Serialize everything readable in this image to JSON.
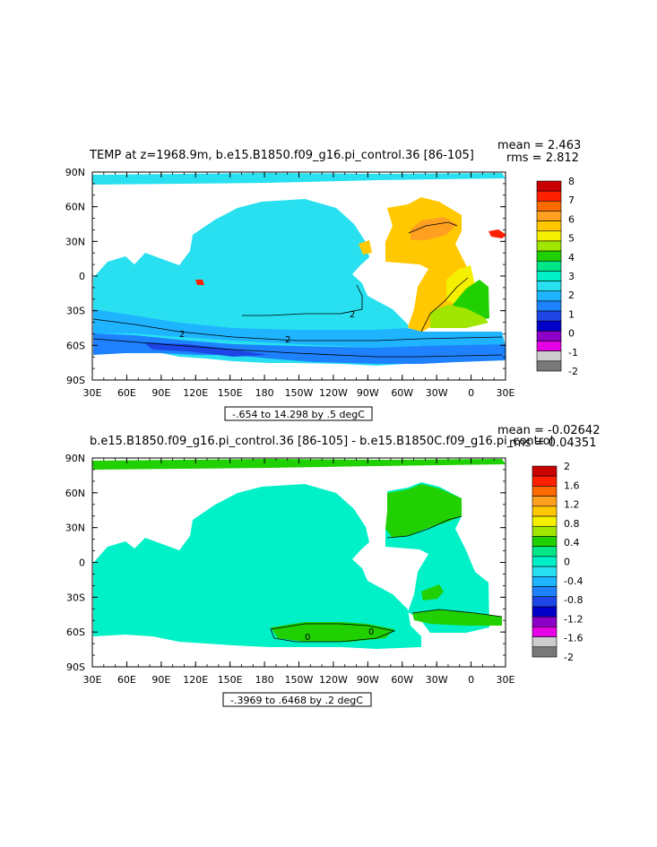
{
  "top_panel": {
    "title": "TEMP at z=1968.9m, b.e15.B1850.f09_g16.pi_control.36 [86-105]",
    "mean": "mean = 2.463",
    "rms": "rms = 2.812",
    "lat_labels": [
      "90N",
      "60N",
      "30N",
      "0",
      "30S",
      "60S",
      "90S"
    ],
    "lon_labels": [
      "30E",
      "60E",
      "90E",
      "120E",
      "150E",
      "180",
      "150W",
      "120W",
      "90W",
      "60W",
      "30W",
      "0",
      "30E"
    ],
    "contour_info": "-.654 to 14.298 by .5 degC",
    "contour_labels": [
      "2",
      "2",
      "2"
    ],
    "colorbar": {
      "labels": [
        "8",
        "7",
        "6",
        "5",
        "4",
        "3",
        "2",
        "1",
        "0",
        "-1",
        "-2"
      ],
      "colors": [
        "#c80000",
        "#ff2000",
        "#ff6a00",
        "#ffa020",
        "#ffc800",
        "#f5f000",
        "#a0e600",
        "#20d000",
        "#00e687",
        "#00f0c8",
        "#28e0f0",
        "#1eb4ff",
        "#1e82ff",
        "#1e46e6",
        "#0000c8",
        "#8c00c8",
        "#e600e6",
        "#cccccc",
        "#787878"
      ]
    }
  },
  "bottom_panel": {
    "title": "b.e15.B1850.f09_g16.pi_control.36 [86-105] - b.e15.B1850C.f09_g16.pi_control",
    "mean": "mean = -0.02642",
    "rms": "rms = 0.04351",
    "lat_labels": [
      "90N",
      "60N",
      "30N",
      "0",
      "30S",
      "60S",
      "90S"
    ],
    "lon_labels": [
      "30E",
      "60E",
      "90E",
      "120E",
      "150E",
      "180",
      "150W",
      "120W",
      "90W",
      "60W",
      "30W",
      "0",
      "30E"
    ],
    "contour_info": "-.3969 to .6468 by .2 degC",
    "contour_labels": [
      "0",
      "0"
    ],
    "colorbar": {
      "labels": [
        "2",
        "1.6",
        "1.2",
        "0.8",
        "0.4",
        "0",
        "-0.4",
        "-0.8",
        "-1.2",
        "-1.6",
        "-2"
      ],
      "colors": [
        "#c80000",
        "#ff2000",
        "#ff6a00",
        "#ffa020",
        "#ffc800",
        "#f5f000",
        "#a0e600",
        "#20d000",
        "#00e687",
        "#00f0c8",
        "#28e0f0",
        "#1eb4ff",
        "#1e82ff",
        "#1e46e6",
        "#0000c8",
        "#8c00c8",
        "#e600e6",
        "#cccccc",
        "#787878"
      ]
    }
  },
  "field_colors": {
    "cyan_light": "#28e0f0",
    "aqua": "#00f0c8",
    "blue_mid": "#1eb4ff",
    "blue_dark": "#1e82ff",
    "navy": "#1e46e6",
    "orange": "#ffc800",
    "yellow": "#f5f000",
    "lime": "#a0e600",
    "green": "#20d000",
    "mint": "#00e687",
    "red": "#ff2000"
  }
}
